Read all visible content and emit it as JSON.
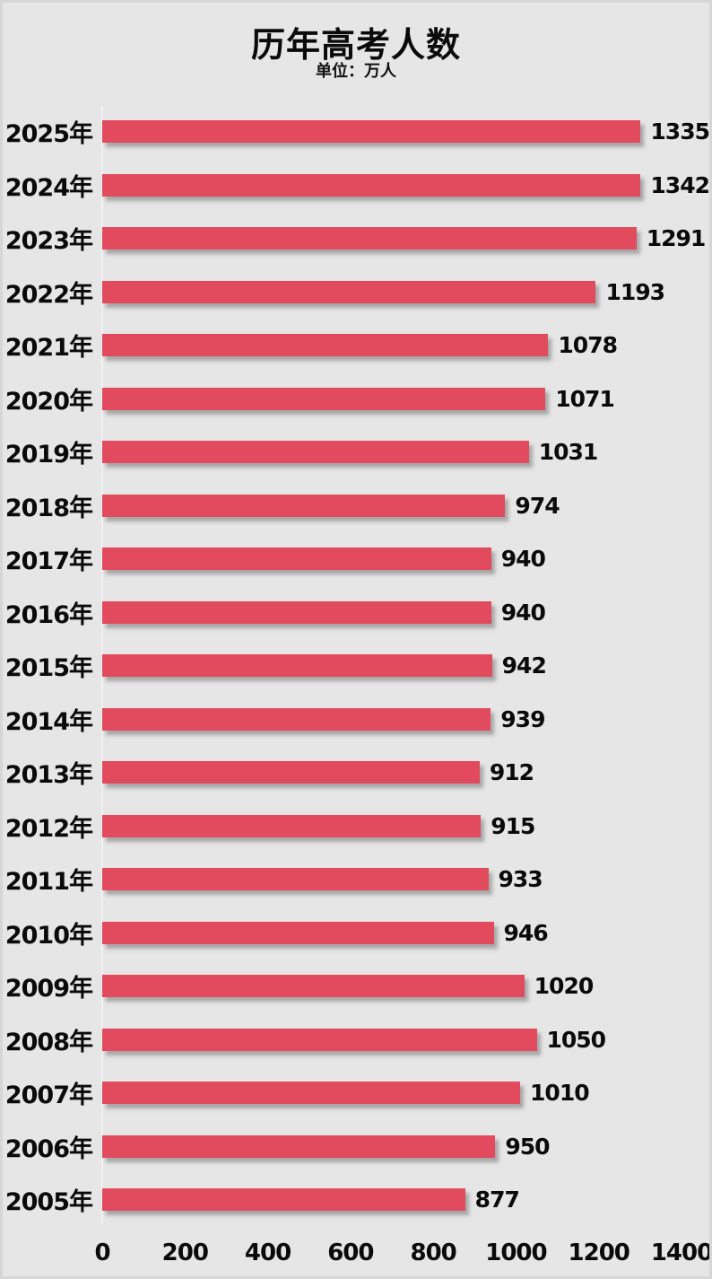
{
  "chart_data": {
    "type": "bar",
    "orientation": "horizontal",
    "title": "历年高考人数",
    "subtitle": "单位：万人",
    "categories": [
      "2025年",
      "2024年",
      "2023年",
      "2022年",
      "2021年",
      "2020年",
      "2019年",
      "2018年",
      "2017年",
      "2016年",
      "2015年",
      "2014年",
      "2013年",
      "2012年",
      "2011年",
      "2010年",
      "2009年",
      "2008年",
      "2007年",
      "2006年",
      "2005年"
    ],
    "values": [
      1335,
      1342,
      1291,
      1193,
      1078,
      1071,
      1031,
      974,
      940,
      940,
      942,
      939,
      912,
      915,
      933,
      946,
      1020,
      1050,
      1010,
      950,
      877
    ],
    "xlabel": "",
    "ylabel": "",
    "xlim": [
      0,
      1400
    ],
    "xticks": [
      0,
      200,
      400,
      600,
      800,
      1000,
      1200,
      1400
    ],
    "grid": false,
    "legend": "none",
    "data_labels": true,
    "colors": {
      "bar": "#e24a5d",
      "background": "#e6e6e6",
      "text": "#0a0a0a",
      "axis_line": "#f2f2f2"
    }
  }
}
